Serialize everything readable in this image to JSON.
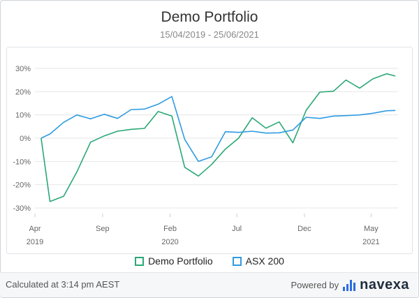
{
  "title": "Demo Portfolio",
  "subtitle": "15/04/2019 - 25/06/2021",
  "legend": {
    "series1": "Demo Portfolio",
    "series2": "ASX 200"
  },
  "footer": {
    "calculated": "Calculated at 3:14 pm AEST",
    "powered_by": "Powered by",
    "brand": "navexa",
    "brand_icon": "bar-chart-logo-icon"
  },
  "colors": {
    "portfolio": "#2aa876",
    "asx": "#2f9be0",
    "grid": "#e6e6e6",
    "axis_text": "#666666",
    "brand_bars": "#2d6cdf"
  },
  "chart_data": {
    "type": "line",
    "title": "Demo Portfolio",
    "subtitle": "15/04/2019 - 25/06/2021",
    "xlim": [
      "2019-04-01",
      "2021-07-01"
    ],
    "ylim": [
      -30,
      30
    ],
    "y_ticks": [
      -30,
      -20,
      -10,
      0,
      10,
      20,
      30
    ],
    "y_tick_labels": [
      "-30%",
      "-20%",
      "-10%",
      "0%",
      "10%",
      "20%",
      "30%"
    ],
    "x_ticks": [
      {
        "date": "2019-04-01",
        "label": "Apr",
        "year": "2019"
      },
      {
        "date": "2019-09-01",
        "label": "Sep",
        "year": ""
      },
      {
        "date": "2020-02-01",
        "label": "Feb",
        "year": "2020"
      },
      {
        "date": "2020-07-01",
        "label": "Jul",
        "year": ""
      },
      {
        "date": "2020-12-01",
        "label": "Dec",
        "year": ""
      },
      {
        "date": "2021-05-01",
        "label": "May",
        "year": "2021"
      }
    ],
    "grid": true,
    "legend_position": "bottom",
    "series": [
      {
        "name": "Demo Portfolio",
        "color": "#2aa876",
        "points": [
          [
            "2019-04-15",
            0
          ],
          [
            "2019-05-05",
            -27.2
          ],
          [
            "2019-06-05",
            -25
          ],
          [
            "2019-07-05",
            -14.5
          ],
          [
            "2019-08-05",
            -1.7
          ],
          [
            "2019-09-05",
            1
          ],
          [
            "2019-10-05",
            3
          ],
          [
            "2019-11-05",
            3.8
          ],
          [
            "2019-12-05",
            4.2
          ],
          [
            "2020-01-05",
            11.5
          ],
          [
            "2020-02-05",
            9.5
          ],
          [
            "2020-03-05",
            -12.5
          ],
          [
            "2020-04-05",
            -16.3
          ],
          [
            "2020-05-05",
            -11.3
          ],
          [
            "2020-06-05",
            -4.7
          ],
          [
            "2020-07-05",
            0
          ],
          [
            "2020-08-05",
            8.8
          ],
          [
            "2020-09-05",
            4.3
          ],
          [
            "2020-10-05",
            7
          ],
          [
            "2020-11-05",
            -2
          ],
          [
            "2020-12-05",
            12
          ],
          [
            "2021-01-05",
            19.8
          ],
          [
            "2021-02-05",
            20.2
          ],
          [
            "2021-03-05",
            25
          ],
          [
            "2021-04-05",
            21.5
          ],
          [
            "2021-05-05",
            25.5
          ],
          [
            "2021-06-05",
            27.7
          ],
          [
            "2021-06-25",
            26.7
          ]
        ]
      },
      {
        "name": "ASX 200",
        "color": "#2f9be0",
        "points": [
          [
            "2019-04-15",
            0
          ],
          [
            "2019-05-05",
            1.8
          ],
          [
            "2019-06-05",
            6.8
          ],
          [
            "2019-07-05",
            10
          ],
          [
            "2019-08-05",
            8.3
          ],
          [
            "2019-09-05",
            10.3
          ],
          [
            "2019-10-05",
            8.5
          ],
          [
            "2019-11-05",
            12.3
          ],
          [
            "2019-12-05",
            12.5
          ],
          [
            "2020-01-05",
            14.6
          ],
          [
            "2020-02-05",
            17.9
          ],
          [
            "2020-03-05",
            -0.5
          ],
          [
            "2020-04-05",
            -10
          ],
          [
            "2020-05-05",
            -8
          ],
          [
            "2020-06-05",
            2.8
          ],
          [
            "2020-07-05",
            2.5
          ],
          [
            "2020-08-05",
            3
          ],
          [
            "2020-09-05",
            2.2
          ],
          [
            "2020-10-05",
            2.3
          ],
          [
            "2020-11-05",
            3.5
          ],
          [
            "2020-12-05",
            9
          ],
          [
            "2021-01-05",
            8.5
          ],
          [
            "2021-02-05",
            9.5
          ],
          [
            "2021-03-05",
            9.7
          ],
          [
            "2021-04-05",
            10
          ],
          [
            "2021-05-05",
            10.7
          ],
          [
            "2021-06-05",
            11.8
          ],
          [
            "2021-06-25",
            11.9
          ]
        ]
      }
    ]
  }
}
